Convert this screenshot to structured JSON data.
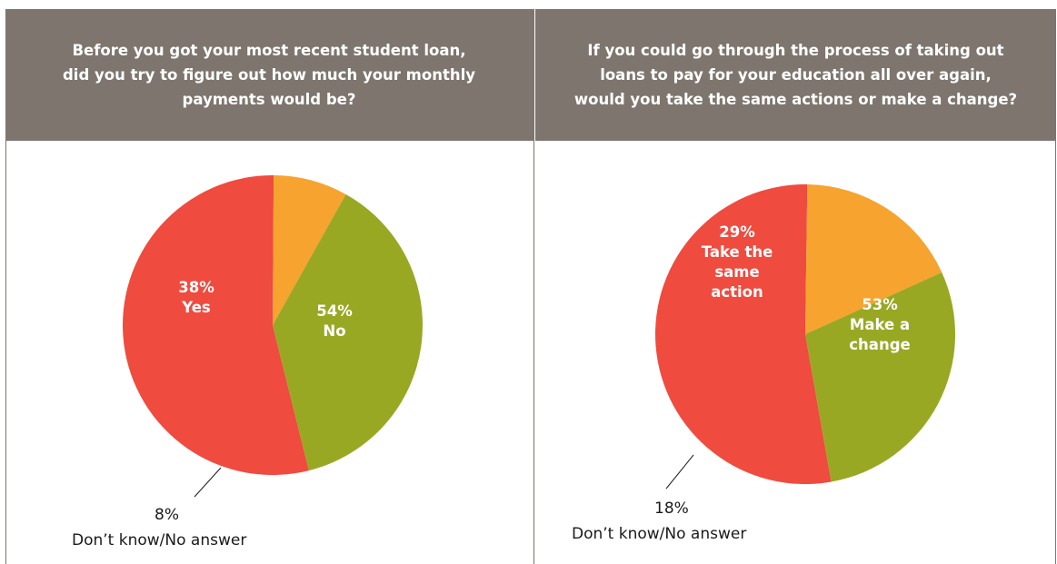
{
  "colors": {
    "header_bg": "#7e756e",
    "red": "#ef4b3f",
    "green": "#99a823",
    "orange": "#f7a330"
  },
  "chart_data": [
    {
      "type": "pie",
      "title": "Before you got your most recent student loan,\ndid you try to figure out how much your monthly\npayments would be?",
      "slices": [
        {
          "label": "No",
          "value": 54,
          "color": "#ef4b3f",
          "text": "54%\nNo"
        },
        {
          "label": "Don’t know/No answer",
          "value": 8,
          "color": "#f7a330",
          "text": "8%\nDon’t know/No answer"
        },
        {
          "label": "Yes",
          "value": 38,
          "color": "#99a823",
          "text": "38%\nYes"
        }
      ]
    },
    {
      "type": "pie",
      "title": "If you could go through the process of taking out\nloans to pay for your education all over again,\nwould you take the same actions or make a change?",
      "slices": [
        {
          "label": "Make a change",
          "value": 53,
          "color": "#ef4b3f",
          "text": "53%\nMake a\nchange"
        },
        {
          "label": "Don’t know/No answer",
          "value": 18,
          "color": "#f7a330",
          "text": "18%\nDon’t know/No answer"
        },
        {
          "label": "Take the same action",
          "value": 29,
          "color": "#99a823",
          "text": "29%\nTake the\nsame\naction"
        }
      ]
    }
  ]
}
